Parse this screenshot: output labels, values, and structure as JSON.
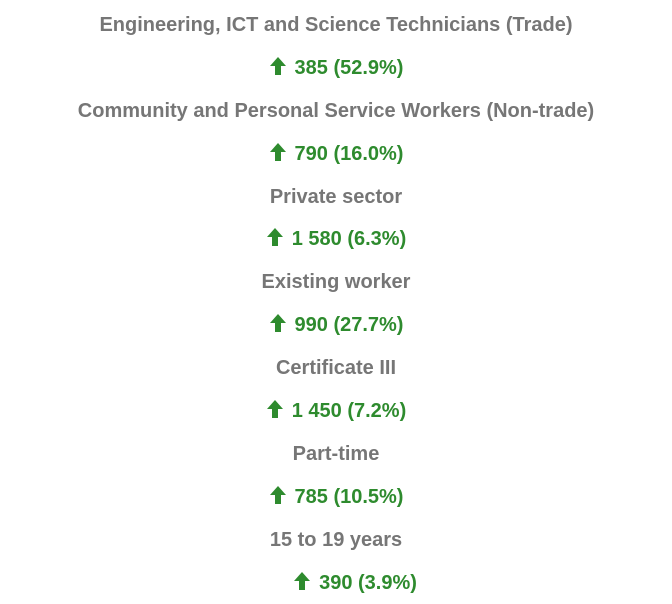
{
  "items": [
    {
      "label": "Engineering, ICT and Science Technicians (Trade)",
      "change": "385 (52.9%)"
    },
    {
      "label": "Community and Personal Service Workers (Non-trade)",
      "change": "790 (16.0%)"
    },
    {
      "label": "Private sector",
      "change": "1 580 (6.3%)"
    },
    {
      "label": "Existing worker",
      "change": "990 (27.7%)"
    },
    {
      "label": "Certificate III",
      "change": "1 450 (7.2%)"
    },
    {
      "label": "Part-time",
      "change": "785 (10.5%)"
    },
    {
      "label": "15 to 19 years",
      "change": "390 (3.9%)"
    }
  ]
}
